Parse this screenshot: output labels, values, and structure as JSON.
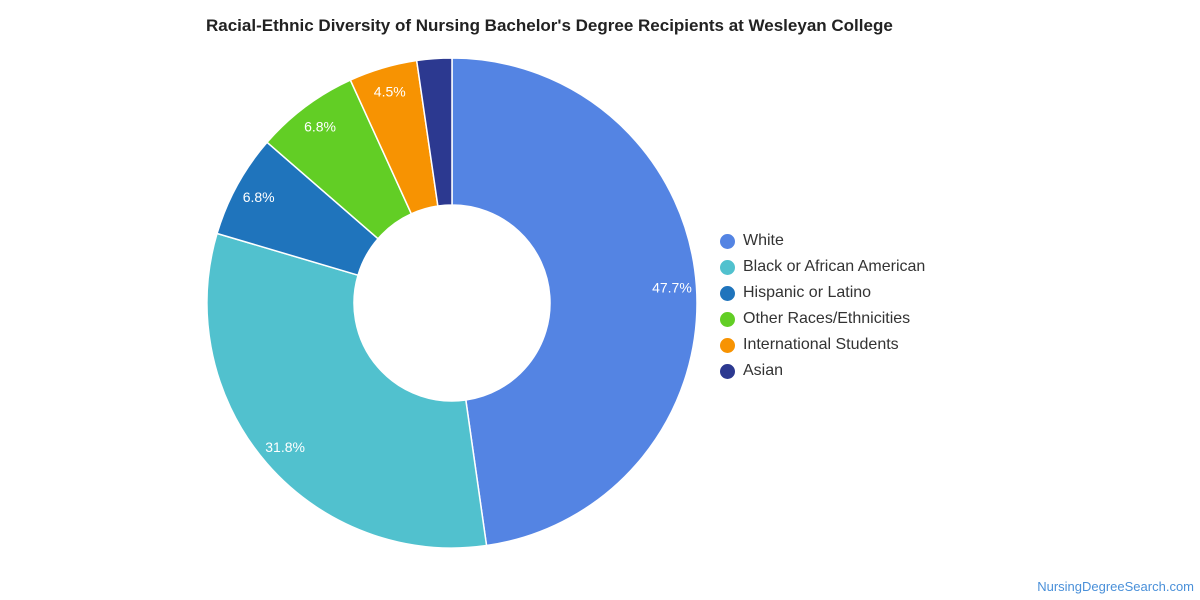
{
  "chart_data": {
    "type": "pie",
    "title": "Racial-Ethnic Diversity of Nursing Bachelor's Degree Recipients at Wesleyan College",
    "donut": true,
    "legend_position": "right",
    "slices": [
      {
        "name": "White",
        "value": 47.7,
        "label": "47.7%",
        "color": "#5484e3"
      },
      {
        "name": "Black or African American",
        "value": 31.8,
        "label": "31.8%",
        "color": "#51c1ce"
      },
      {
        "name": "Hispanic or Latino",
        "value": 6.8,
        "label": "6.8%",
        "color": "#1f74bc"
      },
      {
        "name": "Other Races/Ethnicities",
        "value": 6.8,
        "label": "6.8%",
        "color": "#62ce25"
      },
      {
        "name": "International Students",
        "value": 4.5,
        "label": "4.5%",
        "color": "#f79302"
      },
      {
        "name": "Asian",
        "value": 2.3,
        "label": "",
        "color": "#2c3990"
      }
    ]
  },
  "footer": {
    "credit": "NursingDegreeSearch.com"
  }
}
